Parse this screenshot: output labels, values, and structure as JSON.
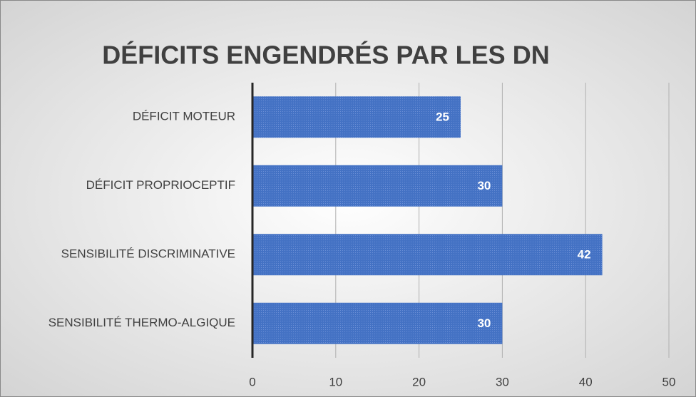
{
  "chart_data": {
    "type": "bar",
    "orientation": "horizontal",
    "title": "DÉFICITS ENGENDRÉS PAR LES DN",
    "categories": [
      "DÉFICIT MOTEUR",
      "DÉFICIT PROPRIOCEPTIF",
      "SENSIBILITÉ DISCRIMINATIVE",
      "SENSIBILITÉ THERMO-ALGIQUE"
    ],
    "values": [
      25,
      30,
      42,
      30
    ],
    "color": "#4472c4",
    "xlim": [
      0,
      50
    ],
    "xticks": [
      0,
      10,
      20,
      30,
      40,
      50
    ],
    "grid": true
  }
}
